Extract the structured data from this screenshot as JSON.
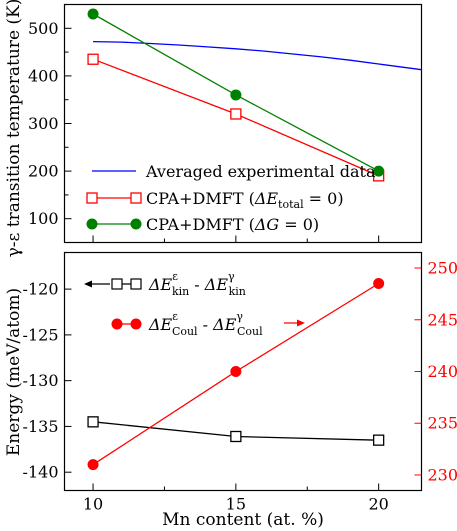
{
  "chart_data": [
    {
      "type": "line",
      "xlabel": "",
      "ylabel": "γ-ε transition temperature (K)",
      "xlim": [
        9,
        21.5
      ],
      "ylim": [
        50,
        550
      ],
      "xticks": [
        10,
        15,
        20
      ],
      "yticks": [
        100,
        200,
        300,
        400,
        500
      ],
      "legend_position": "bottom-left",
      "grid": false,
      "series": [
        {
          "name": "Averaged experimental data",
          "color": "#0000ff",
          "marker": "none",
          "x": [
            10,
            11,
            12,
            13,
            14,
            15,
            16,
            17,
            18,
            19,
            20,
            21.5
          ],
          "y": [
            472,
            471,
            468,
            465,
            461,
            457,
            452,
            446,
            440,
            433,
            425,
            413
          ]
        },
        {
          "name": "CPA+DMFT (ΔE_total = 0)",
          "color": "#ff0000",
          "marker": "open-square",
          "x": [
            10,
            15,
            20
          ],
          "y": [
            435,
            320,
            190
          ]
        },
        {
          "name": "CPA+DMFT (ΔG = 0)",
          "color": "#008000",
          "marker": "filled-circle",
          "x": [
            10,
            15,
            20
          ],
          "y": [
            530,
            360,
            200
          ]
        }
      ]
    },
    {
      "type": "line",
      "xlabel": "Mn content (at. %)",
      "ylabel": "Energy (meV/atom)",
      "xlim": [
        9,
        21.5
      ],
      "ylim": [
        -142,
        -116
      ],
      "ylim_right": [
        228.5,
        251.5
      ],
      "xticks": [
        10,
        15,
        20
      ],
      "yticks": [
        -140,
        -135,
        -130,
        -125,
        -120
      ],
      "yticks_right": [
        230,
        235,
        240,
        245,
        250
      ],
      "grid": false,
      "series": [
        {
          "name": "ΔE_kin^ε - ΔE_kin^γ",
          "color": "#000000",
          "marker": "open-square",
          "axis": "left",
          "x": [
            10,
            15,
            20
          ],
          "y": [
            -134.5,
            -136.1,
            -136.5
          ]
        },
        {
          "name": "ΔE_Coul^ε - ΔE_Coul^γ",
          "color": "#ff0000",
          "marker": "filled-circle",
          "axis": "right",
          "x": [
            10,
            15,
            20
          ],
          "y": [
            231,
            240,
            248.5
          ]
        }
      ]
    }
  ]
}
